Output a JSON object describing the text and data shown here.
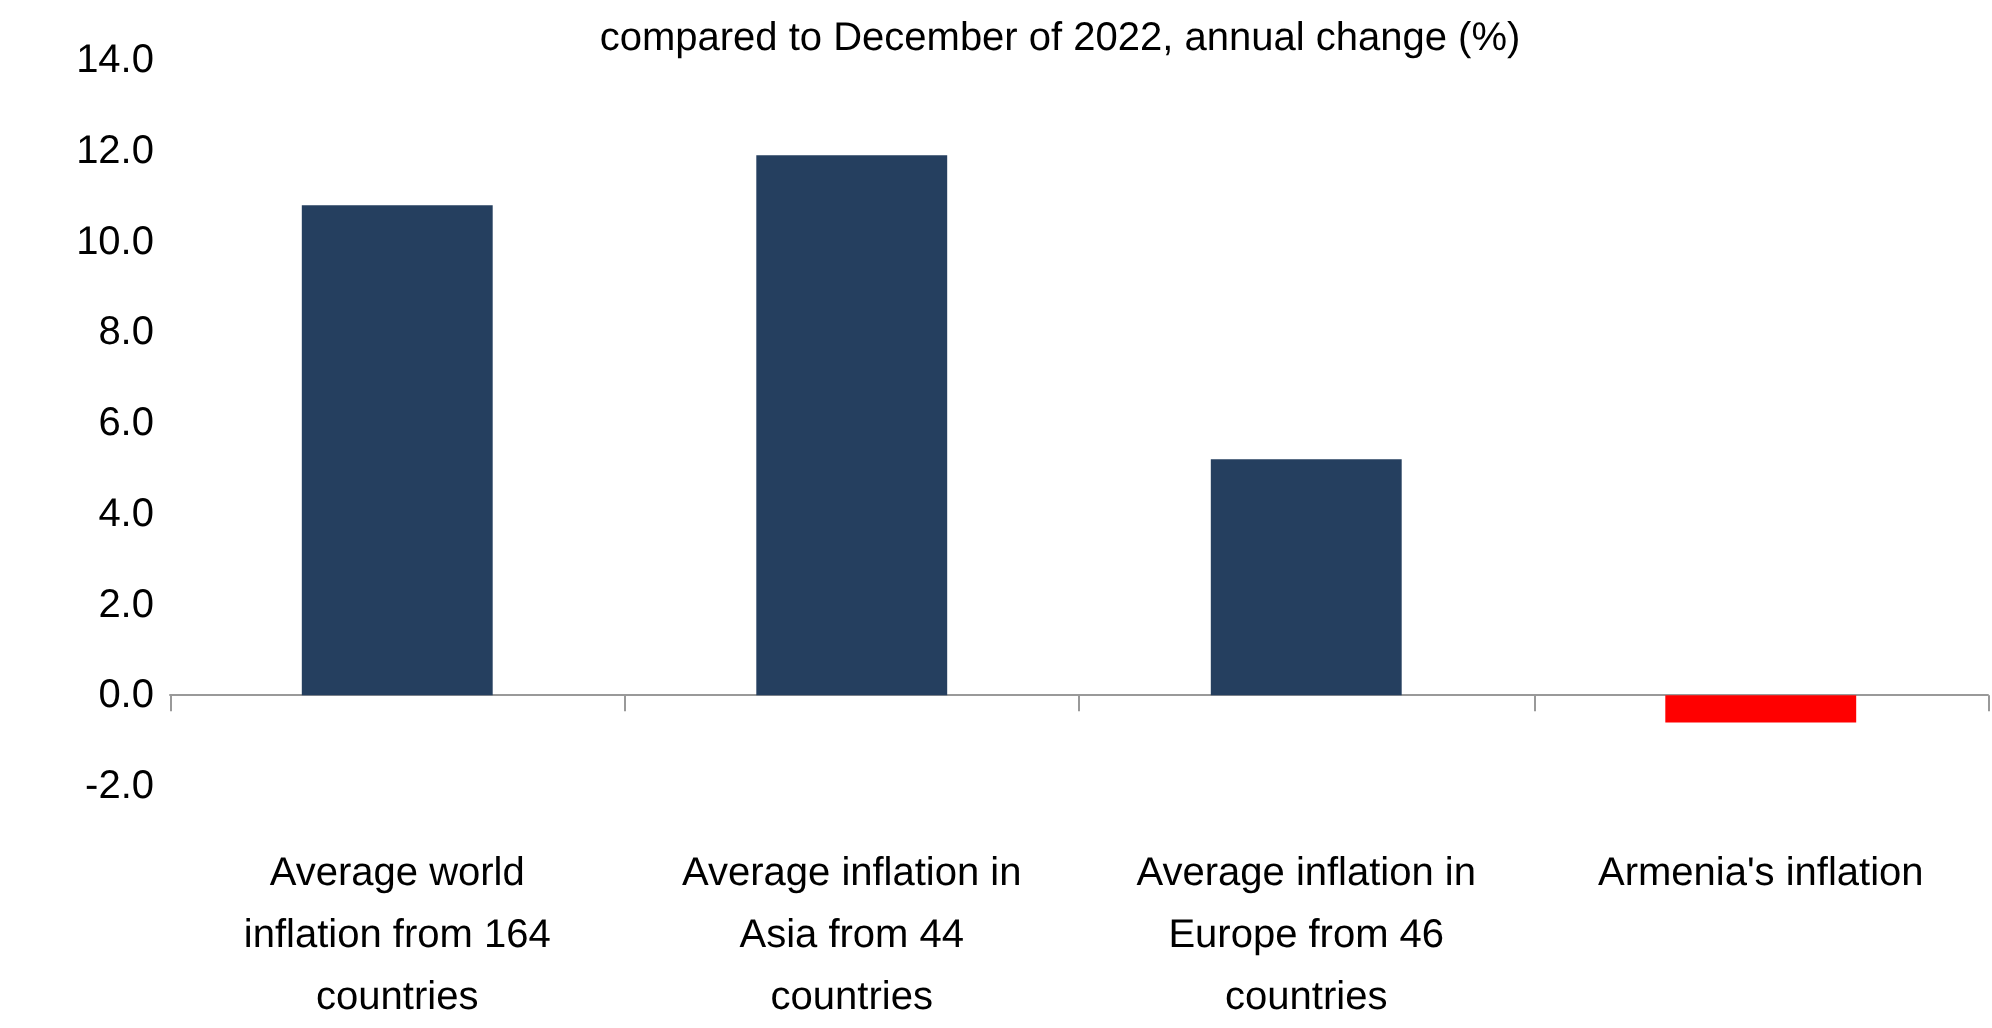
{
  "chart_data": {
    "type": "bar",
    "title": "compared to December of 2022, annual change (%)",
    "categories": [
      "Average world\ninflation from 164\ncountries",
      "Average inflation in\nAsia from 44\ncountries",
      "Average inflation in\nEurope from 46\ncountries",
      "Armenia's inflation"
    ],
    "values": [
      10.8,
      11.9,
      5.2,
      -0.6
    ],
    "colors": [
      "#253f5f",
      "#253f5f",
      "#253f5f",
      "#ff0000"
    ],
    "ylim": [
      -2,
      14
    ],
    "yticks": [
      {
        "value": -2,
        "label": "-2.0"
      },
      {
        "value": 0,
        "label": "0.0"
      },
      {
        "value": 2,
        "label": "2.0"
      },
      {
        "value": 4,
        "label": "4.0"
      },
      {
        "value": 6,
        "label": "6.0"
      },
      {
        "value": 8,
        "label": "8.0"
      },
      {
        "value": 10,
        "label": "10.0"
      },
      {
        "value": 12,
        "label": "12.0"
      },
      {
        "value": 14,
        "label": "14.0"
      }
    ]
  }
}
